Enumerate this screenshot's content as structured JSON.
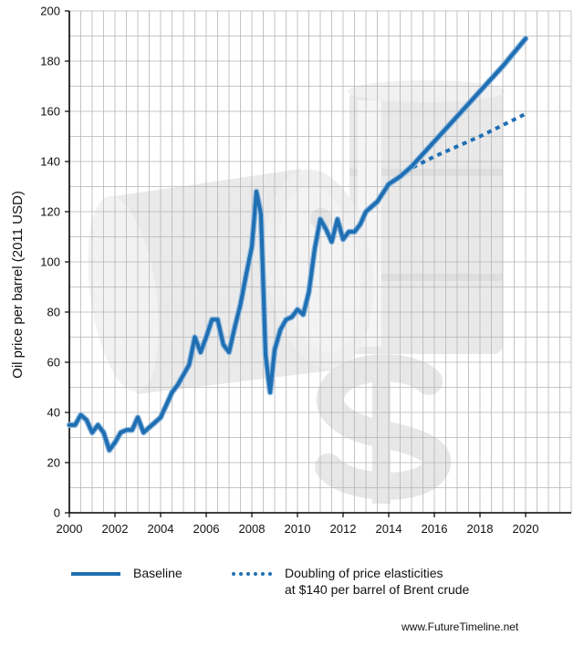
{
  "chart_data": {
    "type": "line",
    "title": "",
    "xlabel": "",
    "ylabel": "Oil price per barrel (2011 USD)",
    "xlim": [
      2000,
      2022
    ],
    "ylim": [
      0,
      200
    ],
    "xticks": [
      2000,
      2002,
      2004,
      2006,
      2008,
      2010,
      2012,
      2014,
      2016,
      2018,
      2020
    ],
    "yticks": [
      0,
      20,
      40,
      60,
      80,
      100,
      120,
      140,
      160,
      180,
      200
    ],
    "grid": true,
    "legend_position": "bottom",
    "series": [
      {
        "name": "Baseline",
        "style": "solid",
        "color": "#1f6fb2",
        "points": [
          [
            2000.0,
            35
          ],
          [
            2000.25,
            35
          ],
          [
            2000.5,
            39
          ],
          [
            2000.75,
            37
          ],
          [
            2001.0,
            32
          ],
          [
            2001.25,
            35
          ],
          [
            2001.5,
            32
          ],
          [
            2001.75,
            25
          ],
          [
            2002.0,
            28
          ],
          [
            2002.25,
            32
          ],
          [
            2002.5,
            33
          ],
          [
            2002.75,
            33
          ],
          [
            2003.0,
            38
          ],
          [
            2003.25,
            32
          ],
          [
            2003.5,
            34
          ],
          [
            2003.75,
            36
          ],
          [
            2004.0,
            38
          ],
          [
            2004.25,
            43
          ],
          [
            2004.5,
            48
          ],
          [
            2004.75,
            51
          ],
          [
            2005.0,
            55
          ],
          [
            2005.25,
            59
          ],
          [
            2005.5,
            70
          ],
          [
            2005.75,
            64
          ],
          [
            2006.0,
            70
          ],
          [
            2006.25,
            77
          ],
          [
            2006.5,
            77
          ],
          [
            2006.75,
            67
          ],
          [
            2007.0,
            64
          ],
          [
            2007.25,
            74
          ],
          [
            2007.5,
            83
          ],
          [
            2007.75,
            95
          ],
          [
            2008.0,
            106
          ],
          [
            2008.2,
            128
          ],
          [
            2008.4,
            119
          ],
          [
            2008.6,
            63
          ],
          [
            2008.8,
            48
          ],
          [
            2009.0,
            65
          ],
          [
            2009.25,
            73
          ],
          [
            2009.5,
            77
          ],
          [
            2009.75,
            78
          ],
          [
            2010.0,
            81
          ],
          [
            2010.25,
            79
          ],
          [
            2010.5,
            88
          ],
          [
            2010.75,
            105
          ],
          [
            2011.0,
            117
          ],
          [
            2011.25,
            113
          ],
          [
            2011.5,
            108
          ],
          [
            2011.75,
            117
          ],
          [
            2012.0,
            109
          ],
          [
            2012.25,
            112
          ],
          [
            2012.5,
            112
          ],
          [
            2012.75,
            115
          ],
          [
            2013.0,
            120
          ],
          [
            2013.5,
            124
          ],
          [
            2014.0,
            131
          ],
          [
            2014.5,
            134
          ],
          [
            2015.0,
            138
          ],
          [
            2016.0,
            148
          ],
          [
            2017.0,
            158
          ],
          [
            2018.0,
            168
          ],
          [
            2019.0,
            178
          ],
          [
            2020.0,
            189
          ]
        ]
      },
      {
        "name": "Doubling of price elasticities at $140 per barrel of Brent crude",
        "style": "dotted",
        "color": "#1f6fb2",
        "points": [
          [
            2014.7,
            136
          ],
          [
            2016.0,
            142
          ],
          [
            2018.0,
            150
          ],
          [
            2020.0,
            159
          ]
        ]
      }
    ]
  },
  "legend": {
    "baseline": "Baseline",
    "doubling_line1": "Doubling of price elasticities",
    "doubling_line2": "at $140 per barrel of Brent crude"
  },
  "source": "www.FutureTimeline.net"
}
